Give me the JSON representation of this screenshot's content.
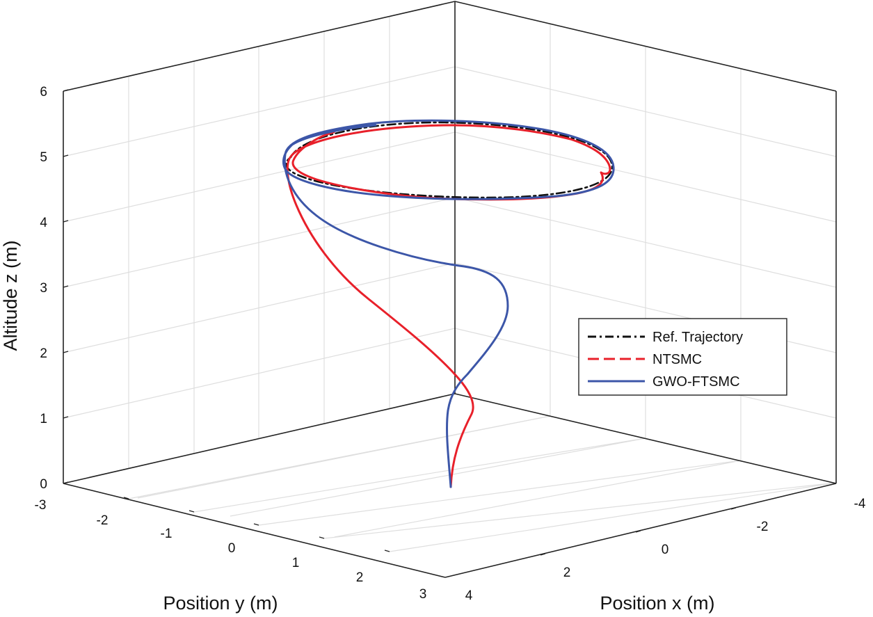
{
  "chart_data": {
    "type": "line3d",
    "title": "",
    "xlabel": "Position x (m)",
    "ylabel": "Position y (m)",
    "zlabel": "Altitude z (m)",
    "xlim": [
      -4,
      4
    ],
    "ylim": [
      -3,
      3
    ],
    "zlim": [
      0,
      6
    ],
    "x_ticks": [
      "4",
      "2",
      "0",
      "-2",
      "-4"
    ],
    "y_ticks": [
      "-3",
      "-2",
      "-1",
      "0",
      "1",
      "2",
      "3"
    ],
    "z_ticks": [
      "0",
      "1",
      "2",
      "3",
      "4",
      "5",
      "6"
    ],
    "grid": true,
    "legend_position": "right",
    "colors": {
      "ref": "#000000",
      "ntsmc": "#e8202a",
      "gwo": "#3c56a8"
    },
    "series": [
      {
        "name": "Ref. Trajectory",
        "style": "dash-dot",
        "description": "circle of radius ~2.5 m centred at (0,0) flown at altitude ~5 m"
      },
      {
        "name": "NTSMC",
        "style": "dashed",
        "description": "climbs from origin with overshoot, then tracks circle with small oscillations"
      },
      {
        "name": "GWO-FTSMC",
        "style": "solid",
        "description": "climbs from origin along a spiral, then tracks the circle closely"
      }
    ],
    "legend": [
      "Ref. Trajectory",
      "NTSMC",
      "GWO-FTSMC"
    ]
  }
}
